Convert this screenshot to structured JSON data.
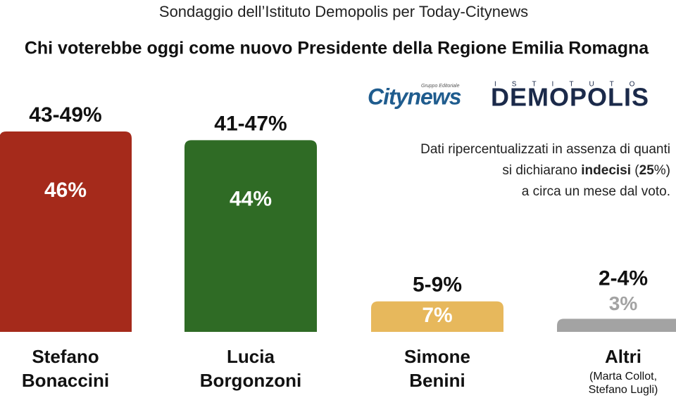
{
  "chart_data": {
    "type": "bar",
    "subtitle": "Sondaggio dell’Istituto Demopolis per Today-Citynews",
    "title": "Chi voterebbe oggi come nuovo Presidente della Regione Emilia Romagna",
    "categories": [
      "Stefano Bonaccini",
      "Lucia Borgonzoni",
      "Simone Benini",
      "Altri"
    ],
    "category_notes": [
      null,
      null,
      null,
      "(Marta Collot, Stefano Lugli)"
    ],
    "values": [
      46,
      44,
      7,
      3
    ],
    "value_labels": [
      "46%",
      "44%",
      "7%",
      "3%"
    ],
    "range_labels": [
      "43-49%",
      "41-47%",
      "5-9%",
      "2-4%"
    ],
    "colors": [
      "#a52a1b",
      "#2f6b25",
      "#e7b85c",
      "#a3a3a3"
    ],
    "note": {
      "line1": "Dati ripercentualizzati in assenza di quanti",
      "line2": [
        "si dichiarano",
        "indecisi",
        "(",
        "25",
        "%)"
      ],
      "line3": "a circa un mese dal voto."
    },
    "logos": {
      "citynews_group": "Gruppo Editoriale",
      "citynews": "Citynews",
      "demopolis_top": "ISTITUTO",
      "demopolis": "DEMOPOLIS"
    }
  }
}
